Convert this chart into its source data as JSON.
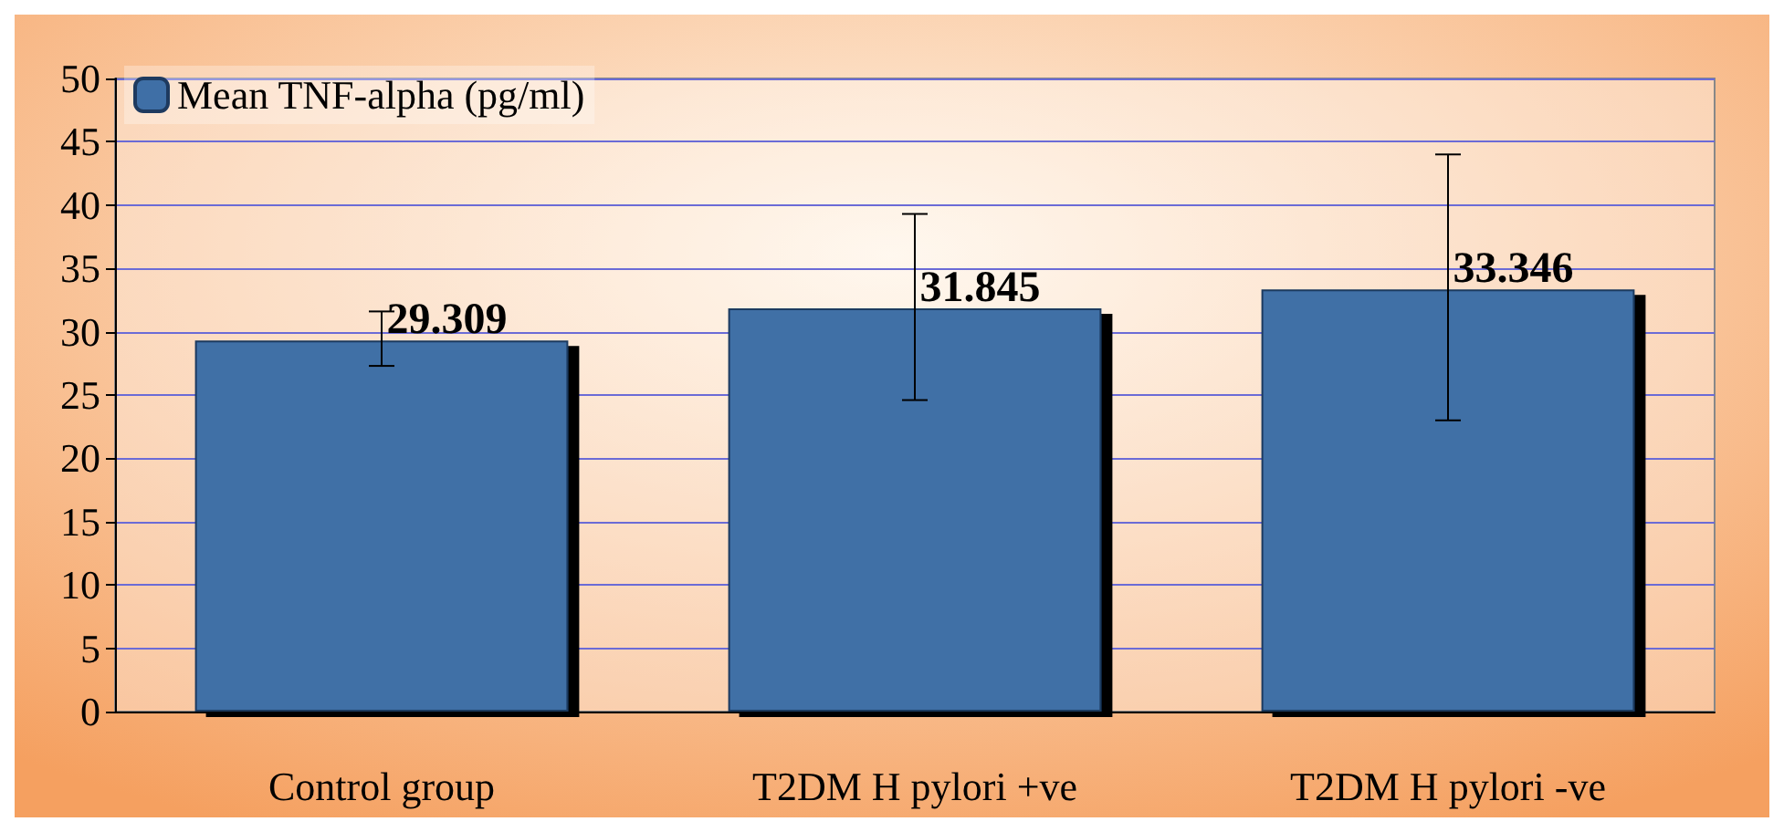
{
  "chart_data": {
    "type": "bar",
    "categories": [
      "Control group",
      "T2DM H pylori +ve",
      "T2DM H pylori -ve"
    ],
    "series": [
      {
        "name": "Mean TNF-alpha (pg/ml)",
        "color": "#3f6fa6",
        "values": [
          29.309,
          31.845,
          33.346
        ],
        "errors": [
          [
            27.3,
            31.6
          ],
          [
            24.6,
            39.3
          ],
          [
            23.0,
            44.0
          ]
        ]
      }
    ],
    "data_labels": true,
    "ylim": [
      0,
      50
    ],
    "yticks": [
      0,
      5,
      10,
      15,
      20,
      25,
      30,
      35,
      40,
      45,
      50
    ],
    "grid": "y",
    "legend": "top left"
  }
}
